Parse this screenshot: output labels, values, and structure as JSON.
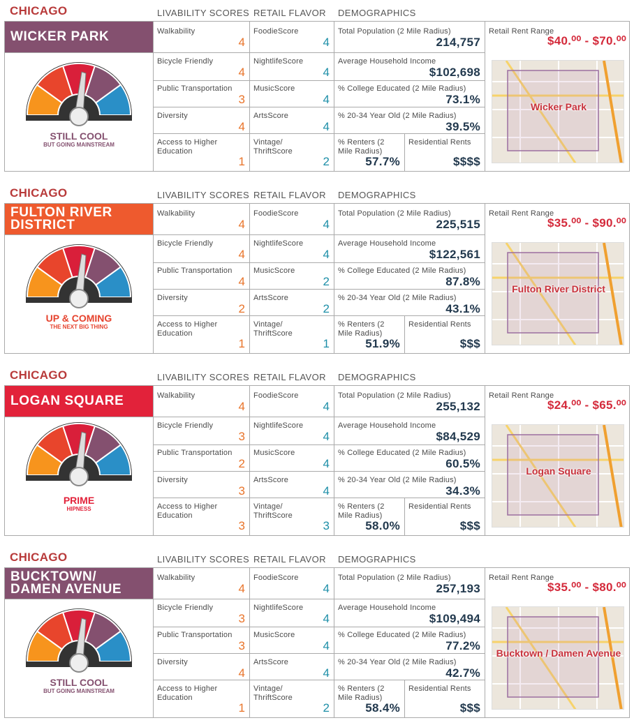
{
  "headers": {
    "livability": "LIVABILITY SCORES",
    "retail": "RETAIL FLAVOR",
    "demo": "DEMOGRAPHICS"
  },
  "labels": {
    "walk": "Walkability",
    "bike": "Bicycle Friendly",
    "transit": "Public Transportation",
    "diversity": "Diversity",
    "education": "Access to Higher Education",
    "foodie": "FoodieScore",
    "nightlife": "NightlifeScore",
    "music": "MusicScore",
    "arts": "ArtsScore",
    "vintage": "Vintage/ ThriftScore",
    "pop": "Total Population (2 Mile Radius)",
    "income": "Average Household Income",
    "college": "% College Educated (2 Mile Radius)",
    "age": "% 20-34 Year Old (2 Mile Radius)",
    "renters": "% Renters (2 Mile Radius)",
    "resrent": "Residential Rents",
    "retailrent": "Retail Rent Range"
  },
  "neighborhoods": [
    {
      "city": "CHICAGO",
      "name": "WICKER PARK",
      "color": "#84506f",
      "gauge1": "STILL COOL",
      "gauge2": "BUT GOING MAINSTREAM",
      "gaugeColor": "#84506f",
      "needle": "#84506f",
      "walk": "4",
      "bike": "4",
      "transit": "3",
      "diversity": "4",
      "education": "1",
      "foodie": "4",
      "nightlife": "4",
      "music": "4",
      "arts": "4",
      "vintage": "2",
      "pop": "214,757",
      "income": "$102,698",
      "college": "73.1%",
      "age": "39.5%",
      "renters": "57.7%",
      "resrent": "$$$$",
      "retail": "$40.⁰⁰ - $70.⁰⁰",
      "map": "Wicker Park"
    },
    {
      "city": "CHICAGO",
      "name": "FULTON RIVER DISTRICT",
      "color": "#ee5a2e",
      "gauge1": "UP & COMING",
      "gauge2": "THE NEXT BIG THING",
      "gaugeColor": "#e6432e",
      "needle": "#e6432e",
      "walk": "4",
      "bike": "4",
      "transit": "4",
      "diversity": "2",
      "education": "1",
      "foodie": "4",
      "nightlife": "4",
      "music": "2",
      "arts": "2",
      "vintage": "1",
      "pop": "225,515",
      "income": "$122,561",
      "college": "87.8%",
      "age": "43.1%",
      "renters": "51.9%",
      "resrent": "$$$",
      "retail": "$35.⁰⁰ - $90.⁰⁰",
      "map": "Fulton River District"
    },
    {
      "city": "CHICAGO",
      "name": "LOGAN SQUARE",
      "color": "#e2223a",
      "gauge1": "PRIME",
      "gauge2": "HIPNESS",
      "gaugeColor": "#e2223a",
      "needle": "#e2223a",
      "walk": "4",
      "bike": "3",
      "transit": "2",
      "diversity": "3",
      "education": "3",
      "foodie": "4",
      "nightlife": "4",
      "music": "4",
      "arts": "4",
      "vintage": "3",
      "pop": "255,132",
      "income": "$84,529",
      "college": "60.5%",
      "age": "34.3%",
      "renters": "58.0%",
      "resrent": "$$$",
      "retail": "$24.⁰⁰ - $65.⁰⁰",
      "map": "Logan Square"
    },
    {
      "city": "CHICAGO",
      "name": "BUCKTOWN/ DAMEN AVENUE",
      "color": "#84506f",
      "gauge1": "STILL COOL",
      "gauge2": "BUT GOING MAINSTREAM",
      "gaugeColor": "#84506f",
      "needle": "#84506f",
      "walk": "4",
      "bike": "3",
      "transit": "3",
      "diversity": "4",
      "education": "1",
      "foodie": "4",
      "nightlife": "4",
      "music": "4",
      "arts": "4",
      "vintage": "2",
      "pop": "257,193",
      "income": "$109,494",
      "college": "77.2%",
      "age": "42.7%",
      "renters": "58.4%",
      "resrent": "$$$",
      "retail": "$35.⁰⁰ - $80.⁰⁰",
      "map": "Bucktown / Damen Avenue"
    }
  ],
  "colors": {
    "orange": "#e9742a",
    "teal": "#1e8fa8",
    "navy": "#22394e",
    "red": "#d42a3b"
  }
}
